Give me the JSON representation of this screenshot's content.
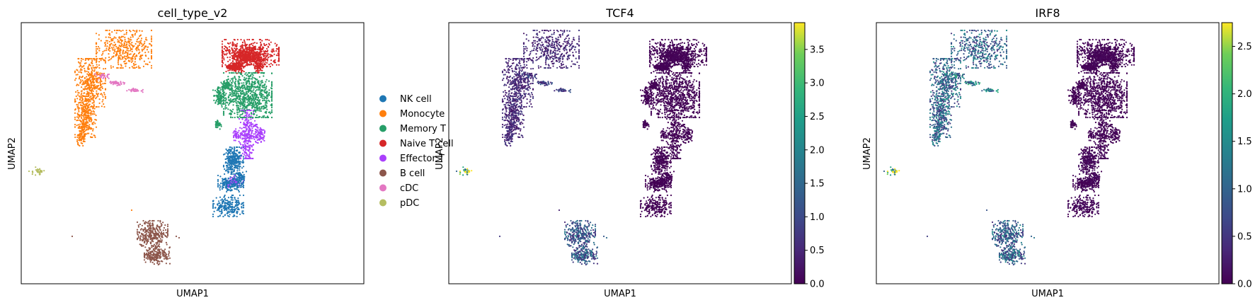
{
  "figure": {
    "panels": [
      {
        "title": "cell_type_v2",
        "xlabel": "UMAP1",
        "ylabel": "UMAP2"
      },
      {
        "title": "TCF4",
        "xlabel": "UMAP1",
        "ylabel": "UMAP2"
      },
      {
        "title": "IRF8",
        "xlabel": "UMAP1",
        "ylabel": "UMAP2"
      }
    ]
  },
  "chart_data": [
    {
      "type": "scatter",
      "title": "cell_type_v2",
      "xlabel": "UMAP1",
      "ylabel": "UMAP2",
      "grid": false,
      "legend_position": "right",
      "series": [
        {
          "name": "NK cell",
          "color": "#1f77b4"
        },
        {
          "name": "Monocyte",
          "color": "#ff7f0e"
        },
        {
          "name": "Memory T",
          "color": "#279e68"
        },
        {
          "name": "Naive T cell",
          "color": "#d62728"
        },
        {
          "name": "Effector T",
          "color": "#aa40fc"
        },
        {
          "name": "B cell",
          "color": "#8c564b"
        },
        {
          "name": "cDC",
          "color": "#e377c2"
        },
        {
          "name": "pDC",
          "color": "#b5bd61"
        }
      ]
    },
    {
      "type": "scatter",
      "title": "TCF4",
      "xlabel": "UMAP1",
      "ylabel": "UMAP2",
      "colormap": "viridis",
      "colorbar": {
        "min": 0.0,
        "max": 3.9,
        "ticks": [
          "0.0",
          "0.5",
          "1.0",
          "1.5",
          "2.0",
          "2.5",
          "3.0",
          "3.5"
        ]
      },
      "expression_by_cluster": {
        "NK cell": 0.05,
        "Monocyte": 0.5,
        "Memory T": 0.05,
        "Naive T cell": 0.05,
        "Effector T": 0.05,
        "B cell": 1.2,
        "cDC": 0.8,
        "pDC": 3.5
      }
    },
    {
      "type": "scatter",
      "title": "IRF8",
      "xlabel": "UMAP1",
      "ylabel": "UMAP2",
      "colormap": "viridis",
      "colorbar": {
        "min": 0.0,
        "max": 2.75,
        "ticks": [
          "0.0",
          "0.5",
          "1.0",
          "1.5",
          "2.0",
          "2.5"
        ]
      },
      "expression_by_cluster": {
        "NK cell": 0.08,
        "Monocyte": 1.0,
        "Memory T": 0.05,
        "Naive T cell": 0.05,
        "Effector T": 0.05,
        "B cell": 0.95,
        "cDC": 1.3,
        "pDC": 2.4
      }
    }
  ]
}
